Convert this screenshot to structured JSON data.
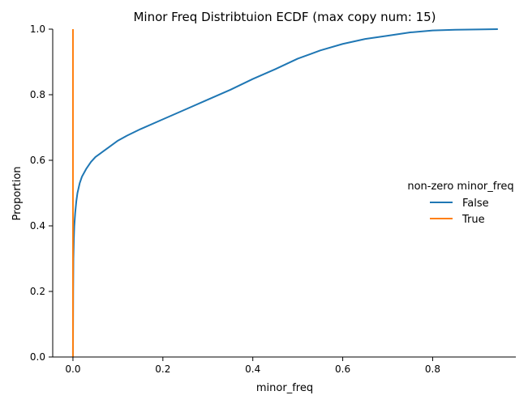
{
  "chart_data": {
    "type": "line",
    "title": "Minor Freq Distribtuion ECDF (max copy num: 15)",
    "xlabel": "minor_freq",
    "ylabel": "Proportion",
    "xlim": [
      -0.045,
      0.985
    ],
    "ylim": [
      0.0,
      1.0
    ],
    "xticks": [
      0.0,
      0.2,
      0.4,
      0.6,
      0.8
    ],
    "xtick_labels": [
      "0.0",
      "0.2",
      "0.4",
      "0.6",
      "0.8"
    ],
    "yticks": [
      0.0,
      0.2,
      0.4,
      0.6,
      0.8,
      1.0
    ],
    "ytick_labels": [
      "0.0",
      "0.2",
      "0.4",
      "0.6",
      "0.8",
      "1.0"
    ],
    "grid": false,
    "legend": {
      "title": "non-zero minor_freq",
      "placement": "right"
    },
    "series": [
      {
        "name": "False",
        "color": "#1f77b4",
        "x": [
          0.0,
          0.0005,
          0.001,
          0.002,
          0.003,
          0.005,
          0.0075,
          0.01,
          0.015,
          0.02,
          0.03,
          0.04,
          0.05,
          0.06,
          0.08,
          0.1,
          0.12,
          0.15,
          0.2,
          0.25,
          0.3,
          0.35,
          0.4,
          0.45,
          0.5,
          0.55,
          0.6,
          0.65,
          0.7,
          0.75,
          0.8,
          0.85,
          0.9,
          0.945
        ],
        "y": [
          0.0,
          0.2,
          0.3,
          0.36,
          0.4,
          0.44,
          0.475,
          0.5,
          0.53,
          0.55,
          0.575,
          0.595,
          0.61,
          0.62,
          0.64,
          0.66,
          0.675,
          0.695,
          0.725,
          0.755,
          0.785,
          0.815,
          0.848,
          0.878,
          0.91,
          0.935,
          0.955,
          0.97,
          0.98,
          0.99,
          0.996,
          0.998,
          0.999,
          1.0
        ]
      },
      {
        "name": "True",
        "color": "#ff7f0e",
        "x": [
          0.0,
          0.0
        ],
        "y": [
          0.0,
          1.0
        ]
      }
    ]
  }
}
